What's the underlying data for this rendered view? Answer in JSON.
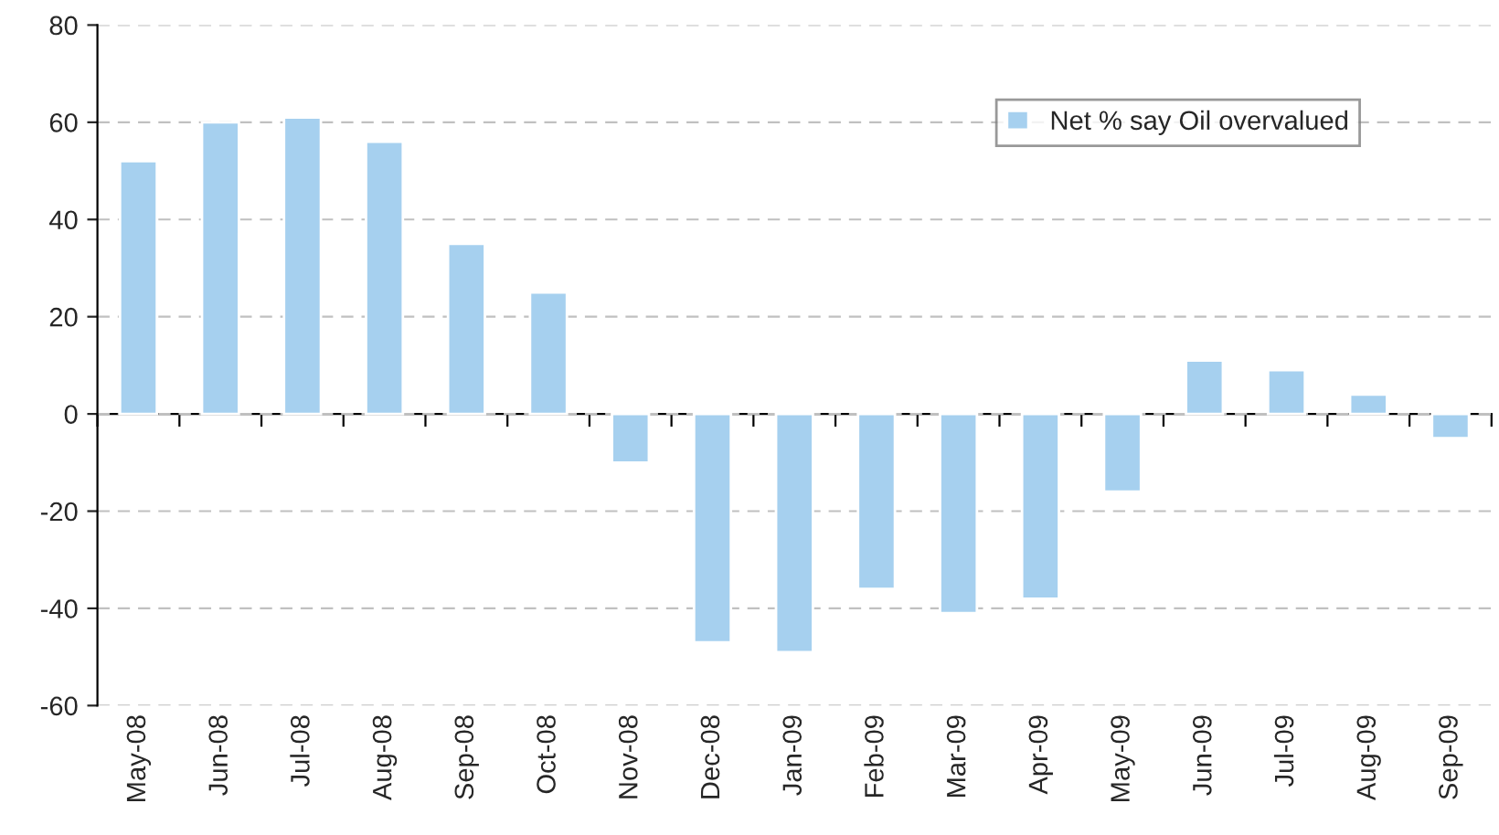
{
  "chart_data": {
    "type": "bar",
    "categories": [
      "May-08",
      "Jun-08",
      "Jul-08",
      "Aug-08",
      "Sep-08",
      "Oct-08",
      "Nov-08",
      "Dec-08",
      "Jan-09",
      "Feb-09",
      "Mar-09",
      "Apr-09",
      "May-09",
      "Jun-09",
      "Jul-09",
      "Aug-09",
      "Sep-09"
    ],
    "series": [
      {
        "name": "Net % say Oil overvalued",
        "color": "#a6d0ef",
        "values": [
          52,
          60,
          61,
          56,
          35,
          25,
          -10,
          -47,
          -49,
          -36,
          -41,
          -38,
          -16,
          11,
          9,
          4,
          -5
        ]
      }
    ],
    "ylim": [
      -60,
      80
    ],
    "yticks": [
      -60,
      -40,
      -20,
      0,
      20,
      40,
      60,
      80
    ],
    "grid": "y",
    "legend": "top right"
  }
}
